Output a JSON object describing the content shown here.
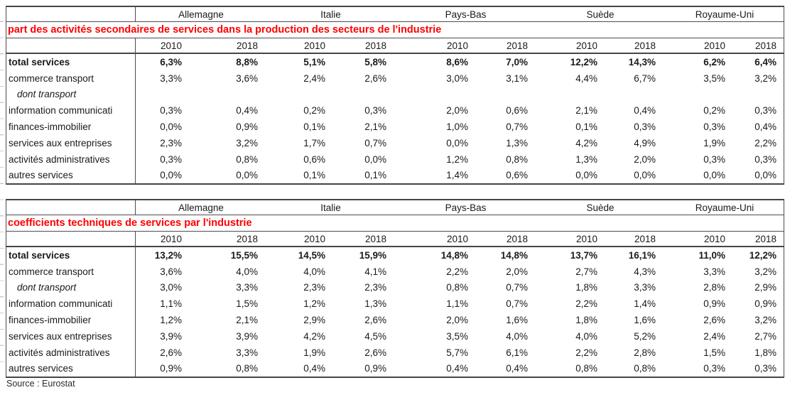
{
  "source_note": "Source : Eurostat",
  "colors": {
    "title_red": "#ff0000",
    "flag_green": "#21a23c",
    "border_dark": "#4d4d4d",
    "text": "#1a1a1a"
  },
  "chart_data": [
    {
      "type": "table",
      "title": "part des activités secondaires de services dans la production des secteurs de l'industrie",
      "column_groups": [
        "Allemagne",
        "Italie",
        "Pays-Bas",
        "Suède",
        "Royaume-Uni"
      ],
      "sub_columns": [
        "2010",
        "2018"
      ],
      "unit": "percent (comma decimal, as displayed)",
      "rows": [
        {
          "label": "total services",
          "bold": true,
          "italic": false,
          "flagged": true,
          "values": [
            "6,3%",
            "8,8%",
            "5,1%",
            "5,8%",
            "8,6%",
            "7,0%",
            "12,2%",
            "14,3%",
            "6,2%",
            "6,4%"
          ]
        },
        {
          "label": "commerce transport",
          "bold": false,
          "italic": false,
          "flagged": true,
          "values": [
            "3,3%",
            "3,6%",
            "2,4%",
            "2,6%",
            "3,0%",
            "3,1%",
            "4,4%",
            "6,7%",
            "3,5%",
            "3,2%"
          ]
        },
        {
          "label": "dont transport",
          "bold": false,
          "italic": true,
          "flagged": false,
          "values": [
            "",
            "",
            "",
            "",
            "",
            "",
            "",
            "",
            "",
            ""
          ]
        },
        {
          "label": "information communicati",
          "bold": false,
          "italic": false,
          "flagged": true,
          "values": [
            "0,3%",
            "0,4%",
            "0,2%",
            "0,3%",
            "2,0%",
            "0,6%",
            "2,1%",
            "0,4%",
            "0,2%",
            "0,3%"
          ]
        },
        {
          "label": "finances-immobilier",
          "bold": false,
          "italic": false,
          "flagged": true,
          "values": [
            "0,0%",
            "0,9%",
            "0,1%",
            "2,1%",
            "1,0%",
            "0,7%",
            "0,1%",
            "0,3%",
            "0,3%",
            "0,4%"
          ]
        },
        {
          "label": "services aux entreprises",
          "bold": false,
          "italic": false,
          "flagged": true,
          "values": [
            "2,3%",
            "3,2%",
            "1,7%",
            "0,7%",
            "0,0%",
            "1,3%",
            "4,2%",
            "4,9%",
            "1,9%",
            "2,2%"
          ]
        },
        {
          "label": "activités administratives",
          "bold": false,
          "italic": false,
          "flagged": true,
          "values": [
            "0,3%",
            "0,8%",
            "0,6%",
            "0,0%",
            "1,2%",
            "0,8%",
            "1,3%",
            "2,0%",
            "0,3%",
            "0,3%"
          ]
        },
        {
          "label": "autres services",
          "bold": false,
          "italic": false,
          "flagged": false,
          "values": [
            "0,0%",
            "0,0%",
            "0,1%",
            "0,1%",
            "1,4%",
            "0,6%",
            "0,0%",
            "0,0%",
            "0,0%",
            "0,0%"
          ]
        }
      ]
    },
    {
      "type": "table",
      "title": "coefficients techniques de services par l'industrie",
      "column_groups": [
        "Allemagne",
        "Italie",
        "Pays-Bas",
        "Suède",
        "Royaume-Uni"
      ],
      "sub_columns": [
        "2010",
        "2018"
      ],
      "unit": "percent (comma decimal, as displayed)",
      "rows": [
        {
          "label": "total services",
          "bold": true,
          "italic": false,
          "flagged": false,
          "values": [
            "13,2%",
            "15,5%",
            "14,5%",
            "15,9%",
            "14,8%",
            "14,8%",
            "13,7%",
            "16,1%",
            "11,0%",
            "12,2%"
          ]
        },
        {
          "label": "commerce transport",
          "bold": false,
          "italic": false,
          "flagged": false,
          "values": [
            "3,6%",
            "4,0%",
            "4,0%",
            "4,1%",
            "2,2%",
            "2,0%",
            "2,7%",
            "4,3%",
            "3,3%",
            "3,2%"
          ]
        },
        {
          "label": "dont transport",
          "bold": false,
          "italic": true,
          "flagged": false,
          "values": [
            "3,0%",
            "3,3%",
            "2,3%",
            "2,3%",
            "0,8%",
            "0,7%",
            "1,8%",
            "3,3%",
            "2,8%",
            "2,9%"
          ]
        },
        {
          "label": "information communicati",
          "bold": false,
          "italic": false,
          "flagged": false,
          "values": [
            "1,1%",
            "1,5%",
            "1,2%",
            "1,3%",
            "1,1%",
            "0,7%",
            "2,2%",
            "1,4%",
            "0,9%",
            "0,9%"
          ]
        },
        {
          "label": "finances-immobilier",
          "bold": false,
          "italic": false,
          "flagged": false,
          "values": [
            "1,2%",
            "2,1%",
            "2,9%",
            "2,6%",
            "2,0%",
            "1,6%",
            "1,8%",
            "1,6%",
            "2,6%",
            "3,2%"
          ]
        },
        {
          "label": "services aux entreprises",
          "bold": false,
          "italic": false,
          "flagged": false,
          "values": [
            "3,9%",
            "3,9%",
            "4,2%",
            "4,5%",
            "3,5%",
            "4,0%",
            "4,0%",
            "5,2%",
            "2,4%",
            "2,7%"
          ]
        },
        {
          "label": "activités administratives",
          "bold": false,
          "italic": false,
          "flagged": false,
          "values": [
            "2,6%",
            "3,3%",
            "1,9%",
            "2,6%",
            "5,7%",
            "6,1%",
            "2,2%",
            "2,8%",
            "1,5%",
            "1,8%"
          ]
        },
        {
          "label": "autres services",
          "bold": false,
          "italic": false,
          "flagged": false,
          "values": [
            "0,9%",
            "0,8%",
            "0,4%",
            "0,9%",
            "0,4%",
            "0,4%",
            "0,8%",
            "0,8%",
            "0,3%",
            "0,3%"
          ]
        }
      ]
    }
  ]
}
